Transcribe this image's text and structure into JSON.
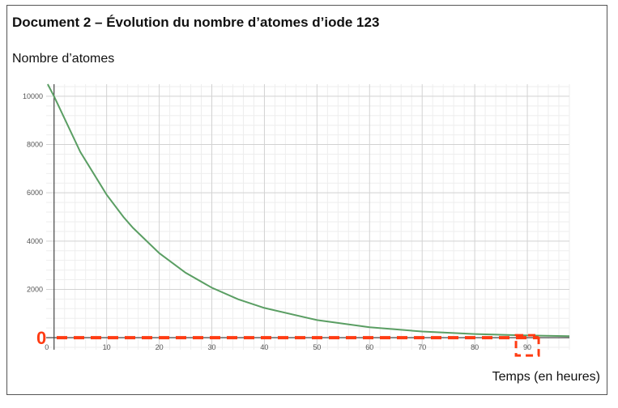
{
  "document": {
    "title": "Document 2 – Évolution du nombre d’atomes d’iode 123"
  },
  "chart_data": {
    "type": "line",
    "ylabel": "Nombre d’atomes",
    "xlabel": "Temps (en heures)",
    "xlim": [
      -1.5,
      98
    ],
    "ylim": [
      -500,
      10500
    ],
    "x_ticks": [
      0,
      10,
      20,
      30,
      40,
      50,
      60,
      70,
      80,
      90
    ],
    "y_ticks": [
      2000,
      4000,
      6000,
      8000,
      10000
    ],
    "grid": true,
    "series": [
      {
        "color": "#5a9e63",
        "x": [
          0,
          5,
          10,
          13.2,
          15,
          20,
          25,
          30,
          35,
          40,
          50,
          60,
          70,
          80,
          90,
          98
        ],
        "y": [
          10000,
          7690,
          5920,
          5000,
          4550,
          3500,
          2690,
          2070,
          1590,
          1230,
          726,
          430,
          254,
          150,
          89,
          59
        ]
      }
    ],
    "annotations": {
      "zero_label": "0",
      "zero_line_y": 0,
      "highlight_x": 90,
      "color": "#ff3b12"
    }
  }
}
